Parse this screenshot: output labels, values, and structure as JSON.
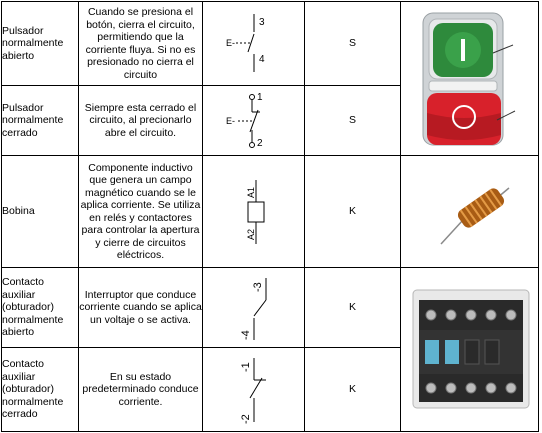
{
  "rows": [
    {
      "name": "Pulsador normalmente abierto",
      "description": "Cuando se presiona el botón, cierra el circuito, permitiendo que la corriente fluya. Si no es presionado no cierra el circuito",
      "symbol_labels": [
        "3",
        "E-",
        "4"
      ],
      "letter": "S"
    },
    {
      "name": "Pulsador normalmente cerrado",
      "description": "Siempre esta cerrado el circuito, al precionarlo abre el circuito.",
      "symbol_labels": [
        "1",
        "E-",
        "2"
      ],
      "letter": "S"
    },
    {
      "name": "Bobina",
      "description": "Componente inductivo que genera un campo magnético cuando se le aplica corriente. Se utiliza en relés y contactores para controlar la apertura y cierre de circuitos eléctricos.",
      "symbol_labels": [
        "A1",
        "A2"
      ],
      "letter": "K"
    },
    {
      "name": "Contacto auxiliar (obturador) normalmente abierto",
      "description": "Interruptor que conduce corriente cuando se aplica un voltaje o se activa.",
      "symbol_labels": [
        "-3",
        "-4"
      ],
      "letter": "K"
    },
    {
      "name": "Contacto auxiliar (obturador) normalmente cerrado",
      "description": "En su estado predeterminado conduce corriente.",
      "symbol_labels": [
        "-1",
        "-2"
      ],
      "letter": "K"
    }
  ],
  "colors": {
    "green_button": "#2e8a3c",
    "red_button": "#d8212b",
    "copper": "#c8771f",
    "contact_blue": "#5fb3cf"
  }
}
